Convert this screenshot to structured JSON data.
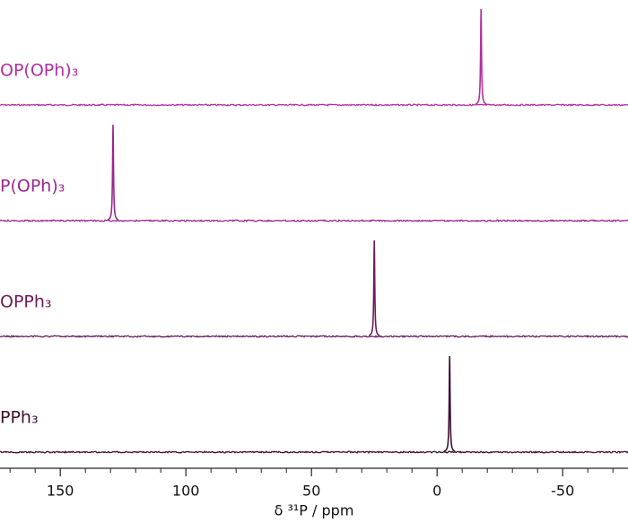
{
  "chart_data": {
    "type": "stacked-spectra",
    "x_label": "δ ³¹P / ppm",
    "xlim": [
      174,
      -76
    ],
    "xticks": [
      150,
      100,
      50,
      0,
      -50
    ],
    "xminorticks": [
      170,
      160,
      140,
      130,
      120,
      110,
      90,
      80,
      70,
      60,
      40,
      30,
      20,
      10,
      -10,
      -20,
      -30,
      -40,
      -60,
      -70
    ],
    "series": [
      {
        "name": "OP(OPh)₃",
        "color": "#b2309f",
        "peak": -17.5
      },
      {
        "name": "P(OPh)₃",
        "color": "#982a8c",
        "peak": 129
      },
      {
        "name": "OPPh₃",
        "color": "#6b1c5c",
        "peak": 25
      },
      {
        "name": "PPh₃",
        "color": "#3c1033",
        "peak": -5
      }
    ]
  }
}
